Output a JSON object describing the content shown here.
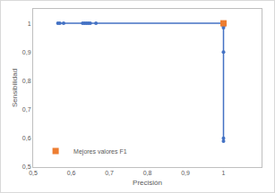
{
  "chart_data": {
    "type": "scatter",
    "x_label": "Precisión",
    "y_label": "Sensibilidad",
    "xlim": [
      0.5,
      1.1
    ],
    "ylim": [
      0.5,
      1.05
    ],
    "xticks": [
      {
        "value": 0.5,
        "label": "0,5"
      },
      {
        "value": 0.6,
        "label": "0,6"
      },
      {
        "value": 0.7,
        "label": "0,7"
      },
      {
        "value": 0.8,
        "label": "0,8"
      },
      {
        "value": 0.9,
        "label": "0,9"
      },
      1
    ],
    "yticks": [
      {
        "value": 0.5,
        "label": "0,5"
      },
      {
        "value": 0.6,
        "label": "0,6"
      },
      {
        "value": 0.7,
        "label": "0,7"
      },
      {
        "value": 0.8,
        "label": "0,8"
      },
      {
        "value": 0.9,
        "label": "0,9"
      },
      1
    ],
    "grid": false,
    "legend": "bottom-left",
    "series": [
      {
        "type": "line",
        "color": "#4472c4",
        "marker": "circle",
        "line_style": "solid",
        "x": [
          0.565,
          0.57,
          0.58,
          0.63,
          0.635,
          0.64,
          0.645,
          0.65,
          0.665,
          1,
          1,
          1,
          1,
          1,
          1
        ],
        "values": [
          1,
          1,
          1,
          1,
          1,
          1,
          1,
          1,
          1,
          1,
          0.99,
          0.985,
          0.9,
          0.6,
          0.59
        ]
      },
      {
        "type": "scatter",
        "name": "Mejores valores F1",
        "color": "#ed7d31",
        "marker": "square",
        "x": [
          1
        ],
        "values": [
          1
        ]
      }
    ]
  }
}
